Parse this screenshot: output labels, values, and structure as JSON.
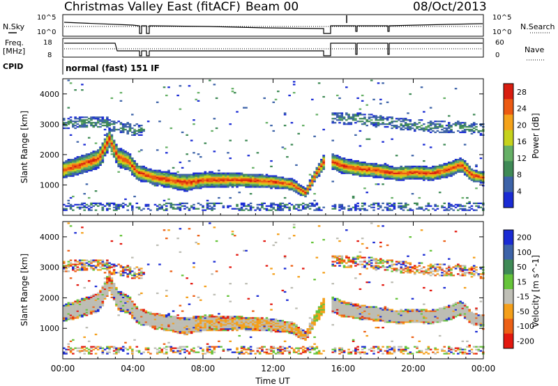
{
  "header": {
    "station": "Christmas Valley East (fitACF)",
    "beam": "Beam 00",
    "date": "08/Oct/2013"
  },
  "sky_panel": {
    "left_label": "N.Sky",
    "left_ticks": [
      "10^5",
      "10^0"
    ],
    "right_label": "N.Search",
    "right_ticks": [
      "10^5",
      "10^0"
    ]
  },
  "freq_panel": {
    "left_label_line1": "Freq.",
    "left_label_line2": "[MHz]",
    "left_ticks": [
      "18",
      "8"
    ],
    "right_label": "Nave",
    "right_ticks": [
      "60",
      "0"
    ]
  },
  "cpid": {
    "label": "CPID",
    "value": "normal (fast) 151 IF"
  },
  "colors": {
    "power": [
      "#1a2bd4",
      "#3d63a8",
      "#3f8a56",
      "#66b066",
      "#c6d21c",
      "#f4a21a",
      "#ec5a12",
      "#d81d0f"
    ],
    "velocity": [
      "#1a2bd4",
      "#3d63a8",
      "#3f8a56",
      "#66c43a",
      "#bfbfb6",
      "#f49f1a",
      "#ec6015",
      "#e3180f"
    ],
    "velocity_ground": "#bdbdb4"
  },
  "chart_data": [
    {
      "type": "heatmap",
      "name": "power",
      "x_axis": "Time UT",
      "x_range": [
        0,
        24
      ],
      "x_ticks": [
        "00:00",
        "04:00",
        "08:00",
        "12:00",
        "16:00",
        "20:00",
        "00:00"
      ],
      "ylabel": "Slant Range [km]",
      "ylim": [
        0,
        4500
      ],
      "y_ticks": [
        1000,
        2000,
        3000,
        4000
      ],
      "colorbar": {
        "label": "Power [dB]",
        "ticks": [
          "4",
          "8",
          "12",
          "16",
          "20",
          "24",
          "28"
        ],
        "range": [
          0,
          30
        ]
      },
      "data_gaps_ut": [
        [
          4.7,
          4.78
        ],
        [
          14.85,
          15.3
        ],
        [
          16.4,
          16.48
        ],
        [
          18.35,
          18.43
        ]
      ],
      "main_echo_band": {
        "x": [
          0,
          1,
          2,
          2.6,
          3.1,
          3.7,
          4.2,
          5,
          6,
          7,
          8,
          9,
          10,
          11,
          12,
          13,
          13.8,
          14.4,
          14.85,
          15.3,
          16,
          17,
          18,
          19,
          20,
          21,
          22,
          22.7,
          23.3,
          24
        ],
        "center": [
          1480,
          1650,
          1850,
          2500,
          1900,
          1750,
          1400,
          1250,
          1150,
          1050,
          1150,
          1150,
          1150,
          1120,
          1080,
          1000,
          720,
          1350,
          1750,
          1750,
          1600,
          1500,
          1450,
          1350,
          1400,
          1350,
          1500,
          1650,
          1300,
          1220
        ],
        "half_width": [
          160,
          170,
          180,
          180,
          180,
          170,
          150,
          140,
          150,
          160,
          150,
          140,
          130,
          130,
          120,
          110,
          90,
          110,
          150,
          150,
          150,
          140,
          130,
          130,
          130,
          130,
          140,
          140,
          120,
          110
        ],
        "peak_db": 28
      },
      "secondary_echo_band": {
        "x": [
          0,
          1,
          2,
          3,
          4,
          15.3,
          17,
          19,
          21,
          22.6,
          24
        ],
        "center": [
          3000,
          3050,
          3050,
          2900,
          2800,
          3200,
          3150,
          3000,
          2900,
          2900,
          2800
        ],
        "peak_db": 10
      }
    },
    {
      "type": "heatmap",
      "name": "velocity",
      "x_axis": "Time UT",
      "xlabel": "Time UT",
      "x_range": [
        0,
        24
      ],
      "x_ticks": [
        "00:00",
        "04:00",
        "08:00",
        "12:00",
        "16:00",
        "20:00",
        "00:00"
      ],
      "ylabel": "Slant Range [km]",
      "ylim": [
        0,
        4500
      ],
      "y_ticks": [
        1000,
        2000,
        3000,
        4000
      ],
      "colorbar": {
        "label": "Velocity [m s^-1]",
        "ticks": [
          "200",
          "100",
          "50",
          "15",
          "-15",
          "-50",
          "-100",
          "-200"
        ]
      },
      "dominant_value": "ground scatter (-15 to 15 m s^-1)"
    }
  ]
}
